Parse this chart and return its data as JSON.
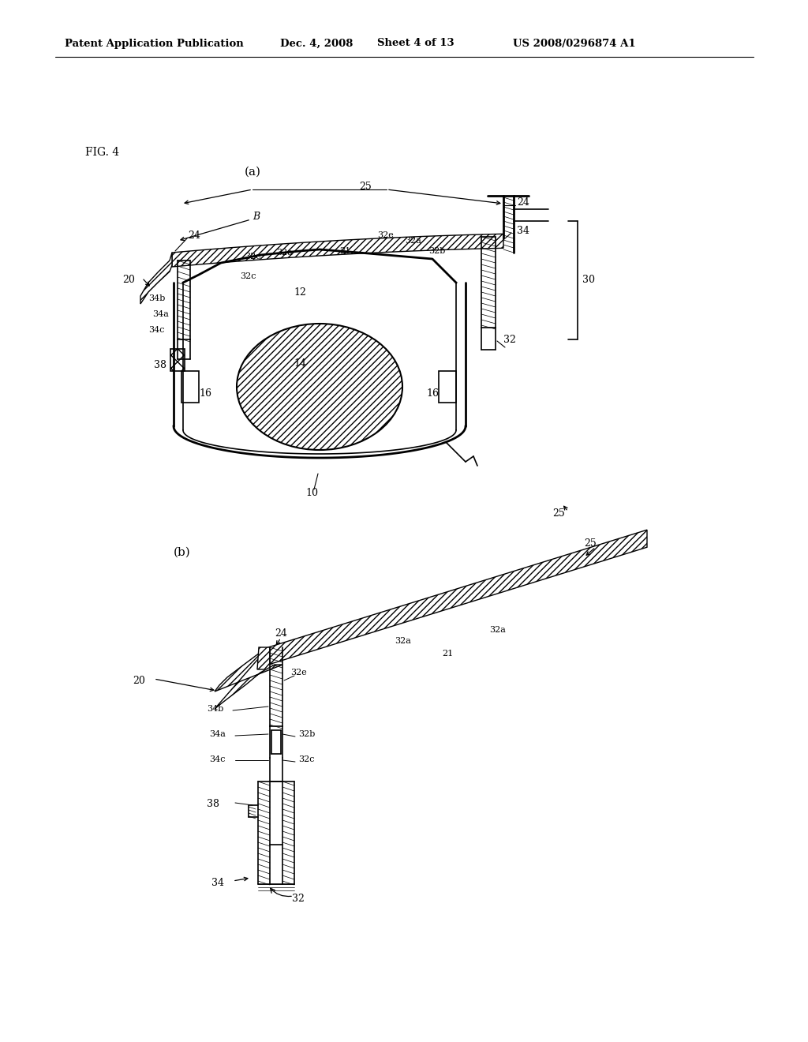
{
  "bg_color": "#ffffff",
  "header_text": "Patent Application Publication",
  "header_date": "Dec. 4, 2008",
  "header_sheet": "Sheet 4 of 13",
  "header_patent": "US 2008/0296874 A1",
  "fig_label": "FIG. 4",
  "lw": 1.2,
  "lw2": 2.0
}
